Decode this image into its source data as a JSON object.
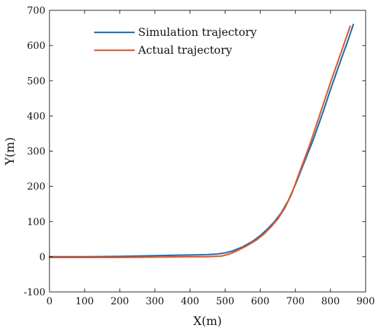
{
  "chart_data": {
    "type": "line",
    "title": "",
    "xlabel": "X(m)",
    "ylabel": "Y(m)",
    "xlim": [
      0,
      900
    ],
    "ylim": [
      -100,
      700
    ],
    "xticks": [
      0,
      100,
      200,
      300,
      400,
      500,
      600,
      700,
      800,
      900
    ],
    "yticks": [
      -100,
      0,
      100,
      200,
      300,
      400,
      500,
      600,
      700
    ],
    "xtick_labels": [
      "0",
      "100",
      "200",
      "300",
      "400",
      "500",
      "600",
      "700",
      "800",
      "900"
    ],
    "ytick_labels": [
      "-100",
      "0",
      "100",
      "200",
      "300",
      "400",
      "500",
      "600",
      "700"
    ],
    "grid": false,
    "legend_position": "top-left",
    "series": [
      {
        "name": "Simulation trajectory",
        "color": "#1f6fb0",
        "x": [
          0,
          100,
          200,
          300,
          400,
          450,
          480,
          500,
          520,
          550,
          580,
          600,
          620,
          640,
          660,
          680,
          700,
          720,
          750,
          780,
          800,
          830,
          850,
          865
        ],
        "y": [
          0,
          0,
          1,
          3,
          5,
          6,
          8,
          11,
          16,
          28,
          45,
          60,
          78,
          99,
          125,
          160,
          205,
          255,
          330,
          415,
          475,
          560,
          615,
          660
        ]
      },
      {
        "name": "Actual trajectory",
        "color": "#e0582a",
        "x": [
          0,
          100,
          200,
          300,
          400,
          450,
          490,
          510,
          530,
          560,
          590,
          610,
          630,
          650,
          670,
          690,
          710,
          740,
          770,
          800,
          830,
          856
        ],
        "y": [
          -2,
          -2,
          -2,
          -1,
          0,
          0,
          2,
          7,
          15,
          30,
          48,
          64,
          84,
          107,
          138,
          180,
          235,
          315,
          405,
          495,
          580,
          655
        ]
      }
    ]
  }
}
